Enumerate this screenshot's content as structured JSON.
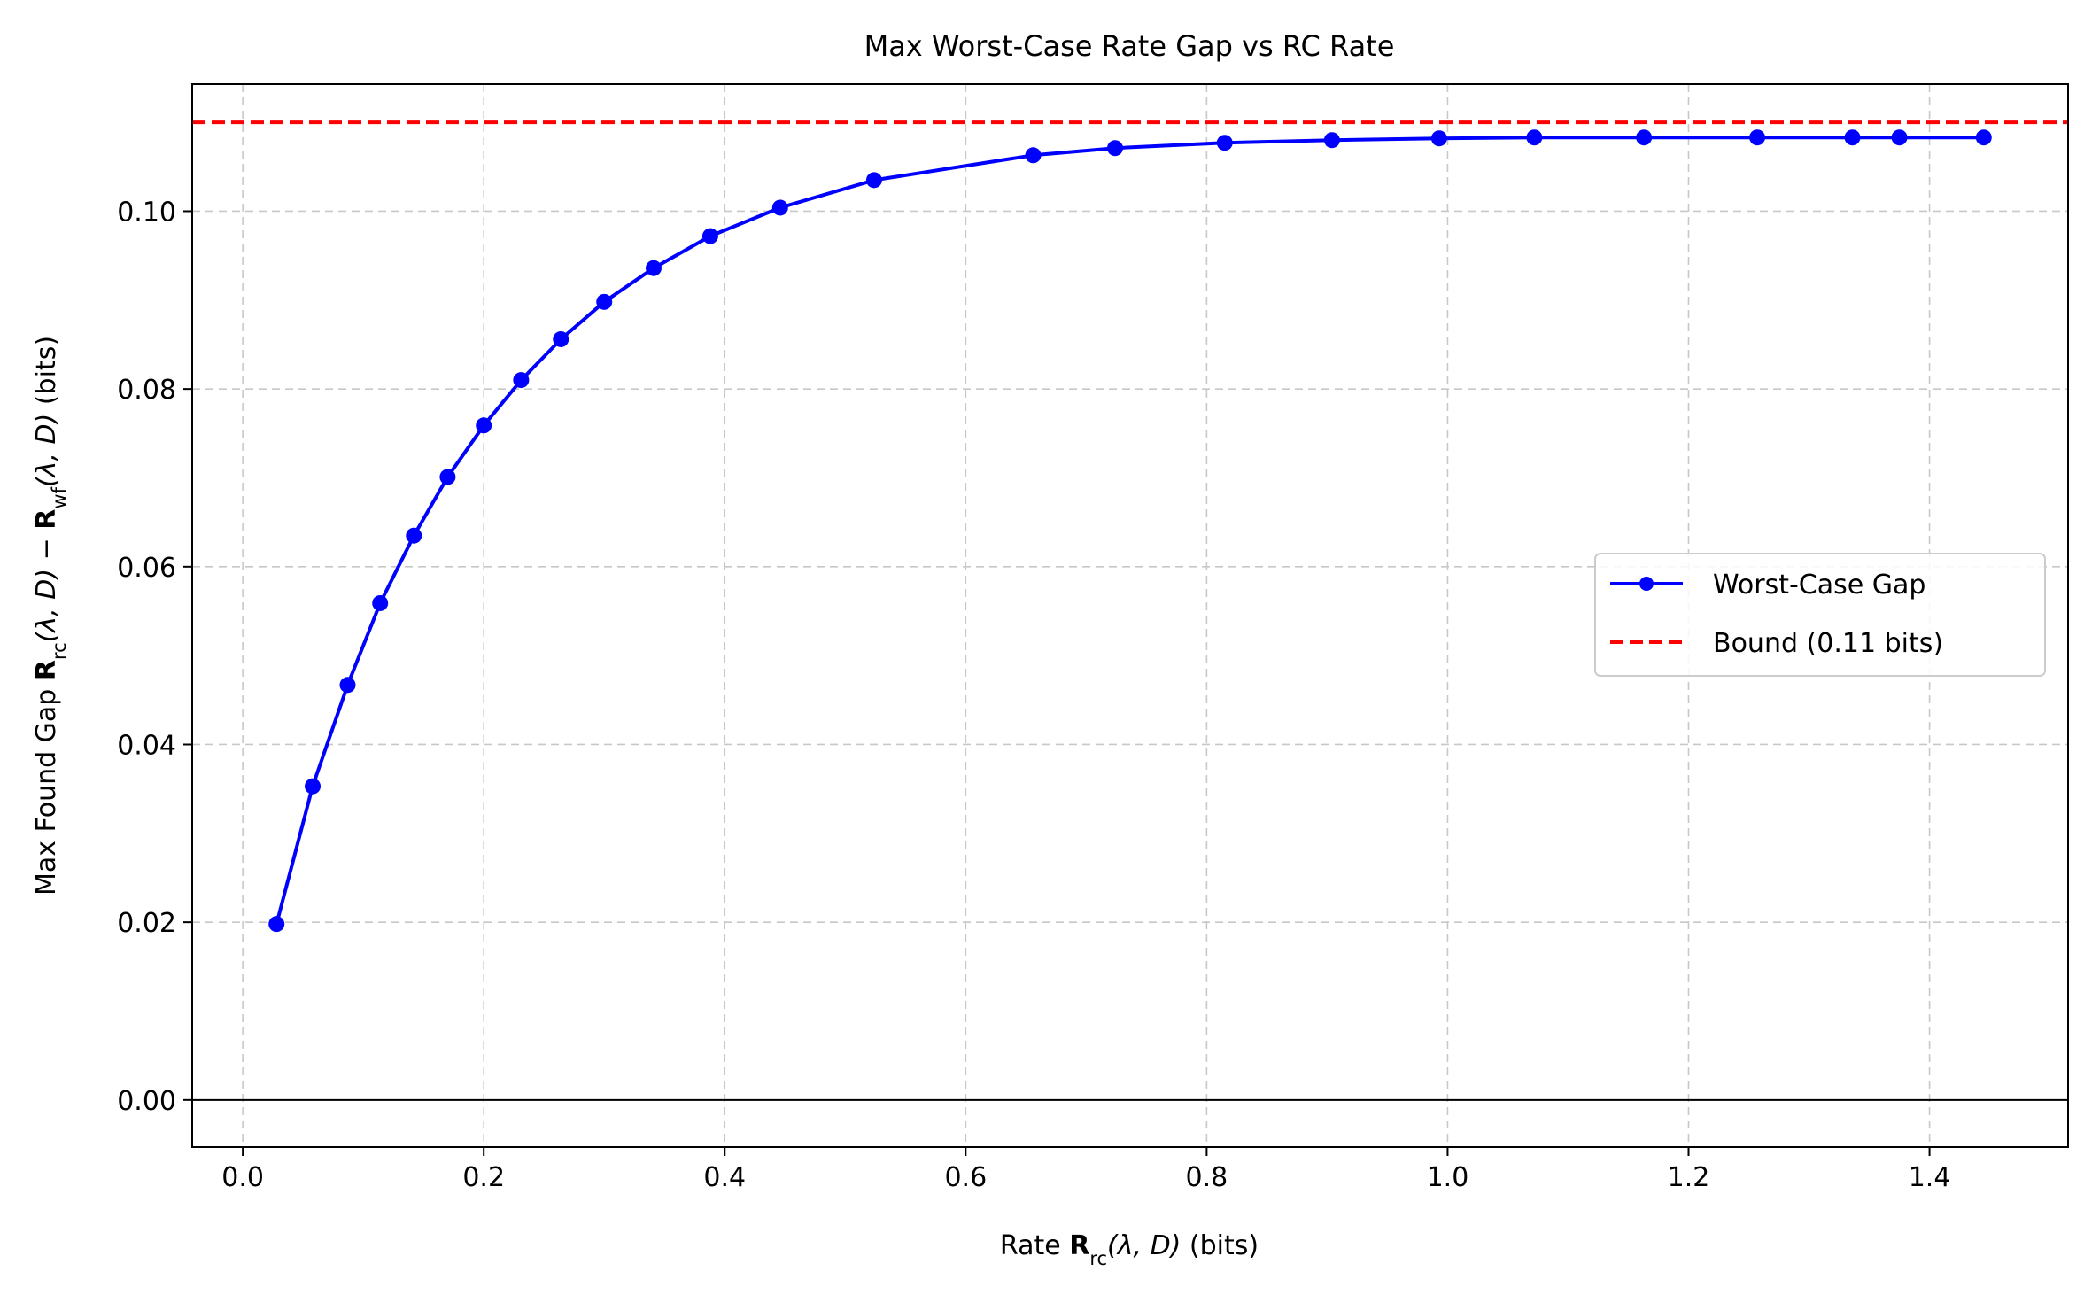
{
  "chart_data": {
    "type": "line",
    "title": "Max Worst-Case Rate Gap vs RC Rate",
    "xlabel": {
      "prefix": "Rate ",
      "bold": "R",
      "sub": "rc",
      "args": "(λ, D)",
      "suffix": " (bits)"
    },
    "ylabel": {
      "prefix": "Max Found Gap ",
      "bold1": "R",
      "sub1": "rc",
      "args1": "(λ, D)",
      "minus": " − ",
      "bold2": "R",
      "sub2": "wf",
      "args2": "(λ, D)",
      "suffix": " (bits)"
    },
    "xlim": [
      -0.042,
      1.515
    ],
    "ylim": [
      -0.0053,
      0.1143
    ],
    "xticks": [
      0.0,
      0.2,
      0.4,
      0.6,
      0.8,
      1.0,
      1.2,
      1.4
    ],
    "xtick_labels": [
      "0.0",
      "0.2",
      "0.4",
      "0.6",
      "0.8",
      "1.0",
      "1.2",
      "1.4"
    ],
    "yticks": [
      0.0,
      0.02,
      0.04,
      0.06,
      0.08,
      0.1
    ],
    "ytick_labels": [
      "0.00",
      "0.02",
      "0.04",
      "0.06",
      "0.08",
      "0.10"
    ],
    "grid": true,
    "series": [
      {
        "name": "Worst-Case Gap",
        "color": "#0000ff",
        "style": "solid-with-markers",
        "x": [
          0.028,
          0.058,
          0.087,
          0.114,
          0.142,
          0.17,
          0.2,
          0.231,
          0.264,
          0.3,
          0.341,
          0.388,
          0.446,
          0.524,
          0.656,
          0.724,
          0.815,
          0.904,
          0.993,
          1.072,
          1.163,
          1.257,
          1.336,
          1.375,
          1.445
        ],
        "y": [
          0.0198,
          0.0353,
          0.0467,
          0.0559,
          0.0635,
          0.0701,
          0.0759,
          0.081,
          0.0856,
          0.0898,
          0.0936,
          0.0972,
          0.1004,
          0.1035,
          0.1063,
          0.1071,
          0.1077,
          0.108,
          0.1082,
          0.1083,
          0.1083,
          0.1083,
          0.1083,
          0.1083,
          0.1083
        ]
      },
      {
        "name": "Bound (0.11 bits)",
        "color": "#ff0000",
        "style": "dashed-horizontal",
        "y": 0.11
      }
    ],
    "reference_line": {
      "y": 0.0,
      "color": "#000000"
    },
    "legend": {
      "position": "center-right",
      "entries": [
        "Worst-Case Gap",
        "Bound (0.11 bits)"
      ]
    }
  }
}
